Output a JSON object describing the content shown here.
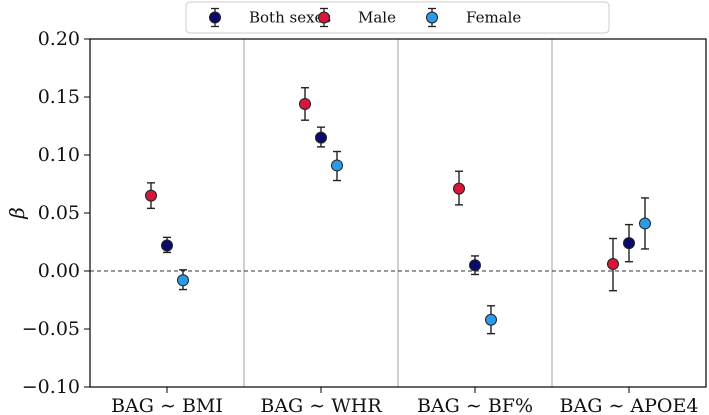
{
  "chart_data": {
    "type": "scatter",
    "title": "",
    "xlabel": "",
    "ylabel": "β",
    "ylim": [
      -0.1,
      0.2
    ],
    "yticks": [
      "−0.10",
      "−0.05",
      "0.00",
      "0.05",
      "0.10",
      "0.15",
      "0.20"
    ],
    "ytick_values": [
      -0.1,
      -0.05,
      0.0,
      0.05,
      0.1,
      0.15,
      0.2
    ],
    "categories": [
      "BAG ∼ BMI",
      "BAG ∼ WHR",
      "BAG ∼ BF%",
      "BAG ∼ APOE4"
    ],
    "reference_line": 0.0,
    "legend_position": "top-center",
    "series": [
      {
        "name": "Both sexes",
        "color": "#0b0b6e",
        "values": [
          0.022,
          0.115,
          0.005,
          0.024
        ],
        "err_low": [
          0.016,
          0.107,
          -0.003,
          0.008
        ],
        "err_high": [
          0.029,
          0.124,
          0.013,
          0.04
        ]
      },
      {
        "name": "Male",
        "color": "#d6173a",
        "values": [
          0.065,
          0.144,
          0.071,
          0.006
        ],
        "err_low": [
          0.054,
          0.13,
          0.057,
          -0.017
        ],
        "err_high": [
          0.076,
          0.158,
          0.086,
          0.028
        ]
      },
      {
        "name": "Female",
        "color": "#2b9be8",
        "values": [
          -0.008,
          0.091,
          -0.042,
          0.041
        ],
        "err_low": [
          -0.016,
          0.078,
          -0.054,
          0.019
        ],
        "err_high": [
          0.001,
          0.103,
          -0.03,
          0.063
        ]
      }
    ]
  }
}
